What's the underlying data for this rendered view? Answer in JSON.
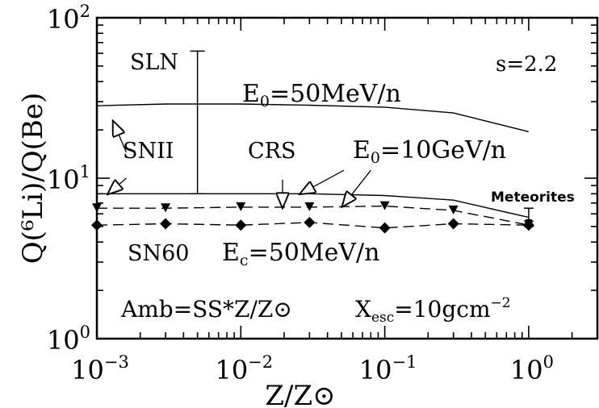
{
  "chart_data": {
    "type": "line",
    "x_scale": "log",
    "y_scale": "log",
    "xlim": [
      0.001,
      3
    ],
    "ylim": [
      1,
      100
    ],
    "grid": false,
    "xlabel": "Z/Z⊙",
    "ylabel": "Q(⁶Li)/Q(Be)",
    "xtick_labels": [
      {
        "base": "10",
        "exp": "−3",
        "value": 0.001
      },
      {
        "base": "10",
        "exp": "−2",
        "value": 0.01
      },
      {
        "base": "10",
        "exp": "−1",
        "value": 0.1
      },
      {
        "base": "10",
        "exp": "0",
        "value": 1
      }
    ],
    "ytick_labels": [
      {
        "base": "10",
        "exp": "0",
        "value": 1
      },
      {
        "base": "10",
        "exp": "1",
        "value": 10
      },
      {
        "base": "10",
        "exp": "2",
        "value": 100
      }
    ],
    "series": [
      {
        "key": "sn2_50mev",
        "style": "solid",
        "marker": "none",
        "x": [
          0.001,
          0.003,
          0.01,
          0.03,
          0.1,
          0.3,
          1.0
        ],
        "y": [
          28.3,
          29.0,
          29.0,
          28.5,
          27.7,
          25.5,
          19.5
        ]
      },
      {
        "key": "sn2_10gev",
        "style": "solid",
        "marker": "none",
        "x": [
          0.001,
          0.003,
          0.01,
          0.03,
          0.1,
          0.3,
          1.0
        ],
        "y": [
          8.0,
          8.0,
          8.0,
          8.0,
          7.8,
          7.3,
          5.7
        ]
      },
      {
        "key": "crs",
        "style": "dashed",
        "marker": "triangle-down",
        "x": [
          0.001,
          0.003,
          0.01,
          0.03,
          0.1,
          0.3,
          1.0
        ],
        "y": [
          6.5,
          6.5,
          6.6,
          6.6,
          6.7,
          6.3,
          5.1
        ]
      },
      {
        "key": "sn60",
        "style": "dashed",
        "marker": "diamond",
        "x": [
          0.001,
          0.003,
          0.01,
          0.03,
          0.1,
          0.3,
          1.0
        ],
        "y": [
          5.1,
          5.2,
          5.1,
          5.3,
          4.9,
          5.2,
          5.1
        ]
      }
    ],
    "sln_range": {
      "x": 0.005,
      "y_low": 8.0,
      "y_high": 62
    },
    "meteorites": {
      "label": "Meteorites",
      "x": 1.0,
      "y": 5.3,
      "y_low": 5.0,
      "y_high": 6.5
    },
    "annotations": {
      "s_value": "s=2.2",
      "sln": "SLN",
      "snii": "SNII",
      "crs": "CRS",
      "e0_50": {
        "main": "E",
        "sub": "0",
        "rest": "=50MeV/n"
      },
      "e0_10": {
        "main": "E",
        "sub": "0",
        "rest": "=10GeV/n"
      },
      "sn60": "SN60",
      "ec": {
        "main": "E",
        "sub": "c",
        "rest": "=50MeV/n"
      },
      "amb": "Amb=SS*Z/Z⊙",
      "xesc": {
        "main": "X",
        "sub": "esc",
        "rest": "=10gcm",
        "sup": "−2"
      }
    },
    "arrows": [
      {
        "label": "snii",
        "from": [
          0.0016,
          14.5
        ],
        "to": [
          0.0013,
          22.5
        ]
      },
      {
        "label": "snii",
        "from": [
          0.0016,
          10.0
        ],
        "to": [
          0.0012,
          8.0
        ]
      },
      {
        "label": "crs",
        "from": [
          0.0195,
          9.8
        ],
        "to": [
          0.0195,
          6.6
        ]
      },
      {
        "label": "e0_10",
        "from": [
          0.052,
          11.2
        ],
        "to": [
          0.026,
          8.0
        ]
      },
      {
        "label": "e0_10",
        "from": [
          0.08,
          11.2
        ],
        "to": [
          0.051,
          6.7
        ]
      }
    ]
  }
}
